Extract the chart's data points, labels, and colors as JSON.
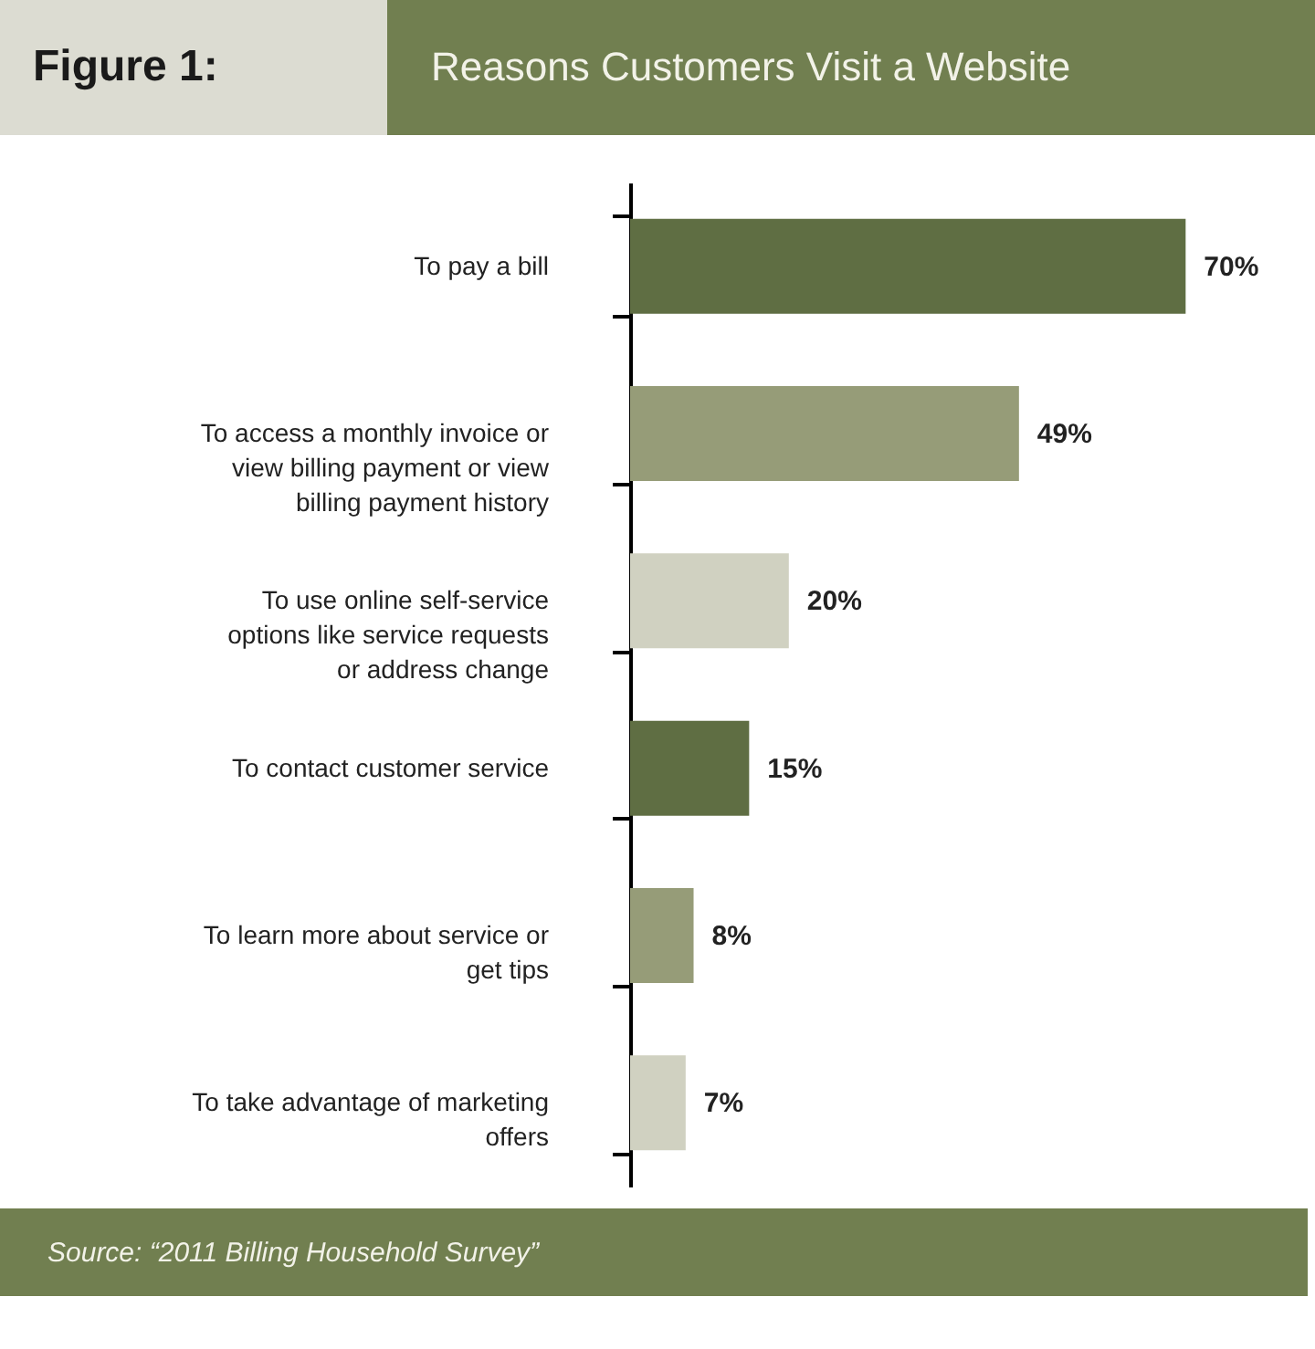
{
  "chart_data": {
    "type": "bar",
    "orientation": "horizontal",
    "title": "Reasons Customers Visit a Website",
    "annotations": [
      "Figure 1:",
      "Source: “2011 Billing Household Survey”"
    ],
    "categories": [
      "To pay a bill",
      "To access a monthly invoice or view billing payment or view billing payment history",
      "To use online self-service options like service requests or address change",
      "To contact customer service",
      "To learn more about service or get tips",
      "To take advantage of marketing offers"
    ],
    "values": [
      70,
      49,
      20,
      15,
      8,
      7
    ],
    "colors": [
      "#5f6e43",
      "#969c78",
      "#d0d1c1",
      "#5f6e43",
      "#969c78",
      "#d0d1c1"
    ],
    "value_labels": [
      "70%",
      "49%",
      "20%",
      "15%",
      "8%",
      "7%"
    ],
    "grid": false
  }
}
